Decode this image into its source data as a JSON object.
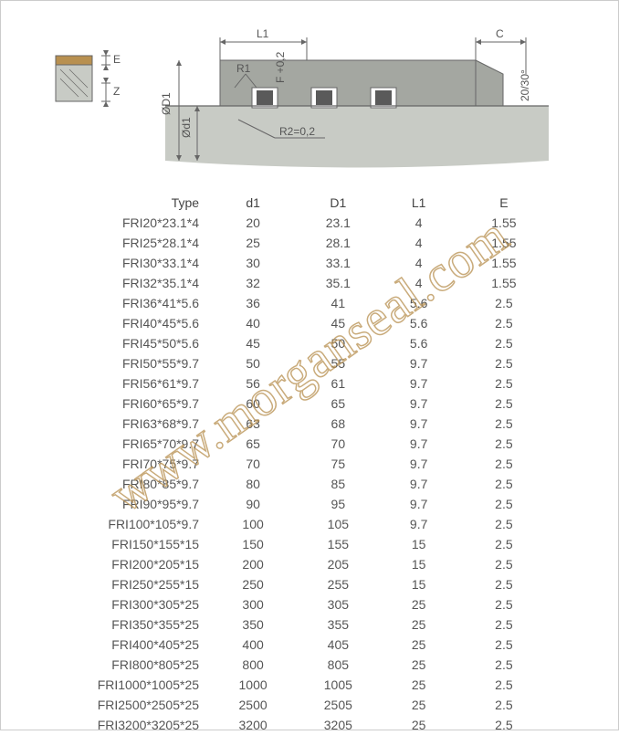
{
  "watermark_text": "www.morganseal.com",
  "diagram": {
    "labels": {
      "L1": "L1",
      "C": "C",
      "E": "E",
      "Z": "Z",
      "R1": "R1",
      "R2": "R2=0,2",
      "D1": "ØD1",
      "d1": "Ød1",
      "F": "F +0,2",
      "angle": "20/30°"
    },
    "colors": {
      "seal_body": "#b89050",
      "seal_body_dark": "#5a5a5a",
      "shaft": "#c8cbc5",
      "housing": "#a4a7a1",
      "line": "#666666",
      "bg": "#ffffff"
    }
  },
  "table": {
    "columns": [
      "Type",
      "d1",
      "D1",
      "L1",
      "E"
    ],
    "rows": [
      [
        "FRI20*23.1*4",
        "20",
        "23.1",
        "4",
        "1.55"
      ],
      [
        "FRI25*28.1*4",
        "25",
        "28.1",
        "4",
        "1.55"
      ],
      [
        "FRI30*33.1*4",
        "30",
        "33.1",
        "4",
        "1.55"
      ],
      [
        "FRI32*35.1*4",
        "32",
        "35.1",
        "4",
        "1.55"
      ],
      [
        "FRI36*41*5.6",
        "36",
        "41",
        "5.6",
        "2.5"
      ],
      [
        "FRI40*45*5.6",
        "40",
        "45",
        "5.6",
        "2.5"
      ],
      [
        "FRI45*50*5.6",
        "45",
        "50",
        "5.6",
        "2.5"
      ],
      [
        "FRI50*55*9.7",
        "50",
        "55",
        "9.7",
        "2.5"
      ],
      [
        "FRI56*61*9.7",
        "56",
        "61",
        "9.7",
        "2.5"
      ],
      [
        "FRI60*65*9.7",
        "60",
        "65",
        "9.7",
        "2.5"
      ],
      [
        "FRI63*68*9.7",
        "63",
        "68",
        "9.7",
        "2.5"
      ],
      [
        "FRI65*70*9.7",
        "65",
        "70",
        "9.7",
        "2.5"
      ],
      [
        "FRI70*75*9.7",
        "70",
        "75",
        "9.7",
        "2.5"
      ],
      [
        "FRI80*85*9.7",
        "80",
        "85",
        "9.7",
        "2.5"
      ],
      [
        "FRI90*95*9.7",
        "90",
        "95",
        "9.7",
        "2.5"
      ],
      [
        "FRI100*105*9.7",
        "100",
        "105",
        "9.7",
        "2.5"
      ],
      [
        "FRI150*155*15",
        "150",
        "155",
        "15",
        "2.5"
      ],
      [
        "FRI200*205*15",
        "200",
        "205",
        "15",
        "2.5"
      ],
      [
        "FRI250*255*15",
        "250",
        "255",
        "15",
        "2.5"
      ],
      [
        "FRI300*305*25",
        "300",
        "305",
        "25",
        "2.5"
      ],
      [
        "FRI350*355*25",
        "350",
        "355",
        "25",
        "2.5"
      ],
      [
        "FRI400*405*25",
        "400",
        "405",
        "25",
        "2.5"
      ],
      [
        "FRI800*805*25",
        "800",
        "805",
        "25",
        "2.5"
      ],
      [
        "FRI1000*1005*25",
        "1000",
        "1005",
        "25",
        "2.5"
      ],
      [
        "FRI2500*2505*25",
        "2500",
        "2505",
        "25",
        "2.5"
      ],
      [
        "FRI3200*3205*25",
        "3200",
        "3205",
        "25",
        "2.5"
      ]
    ]
  }
}
